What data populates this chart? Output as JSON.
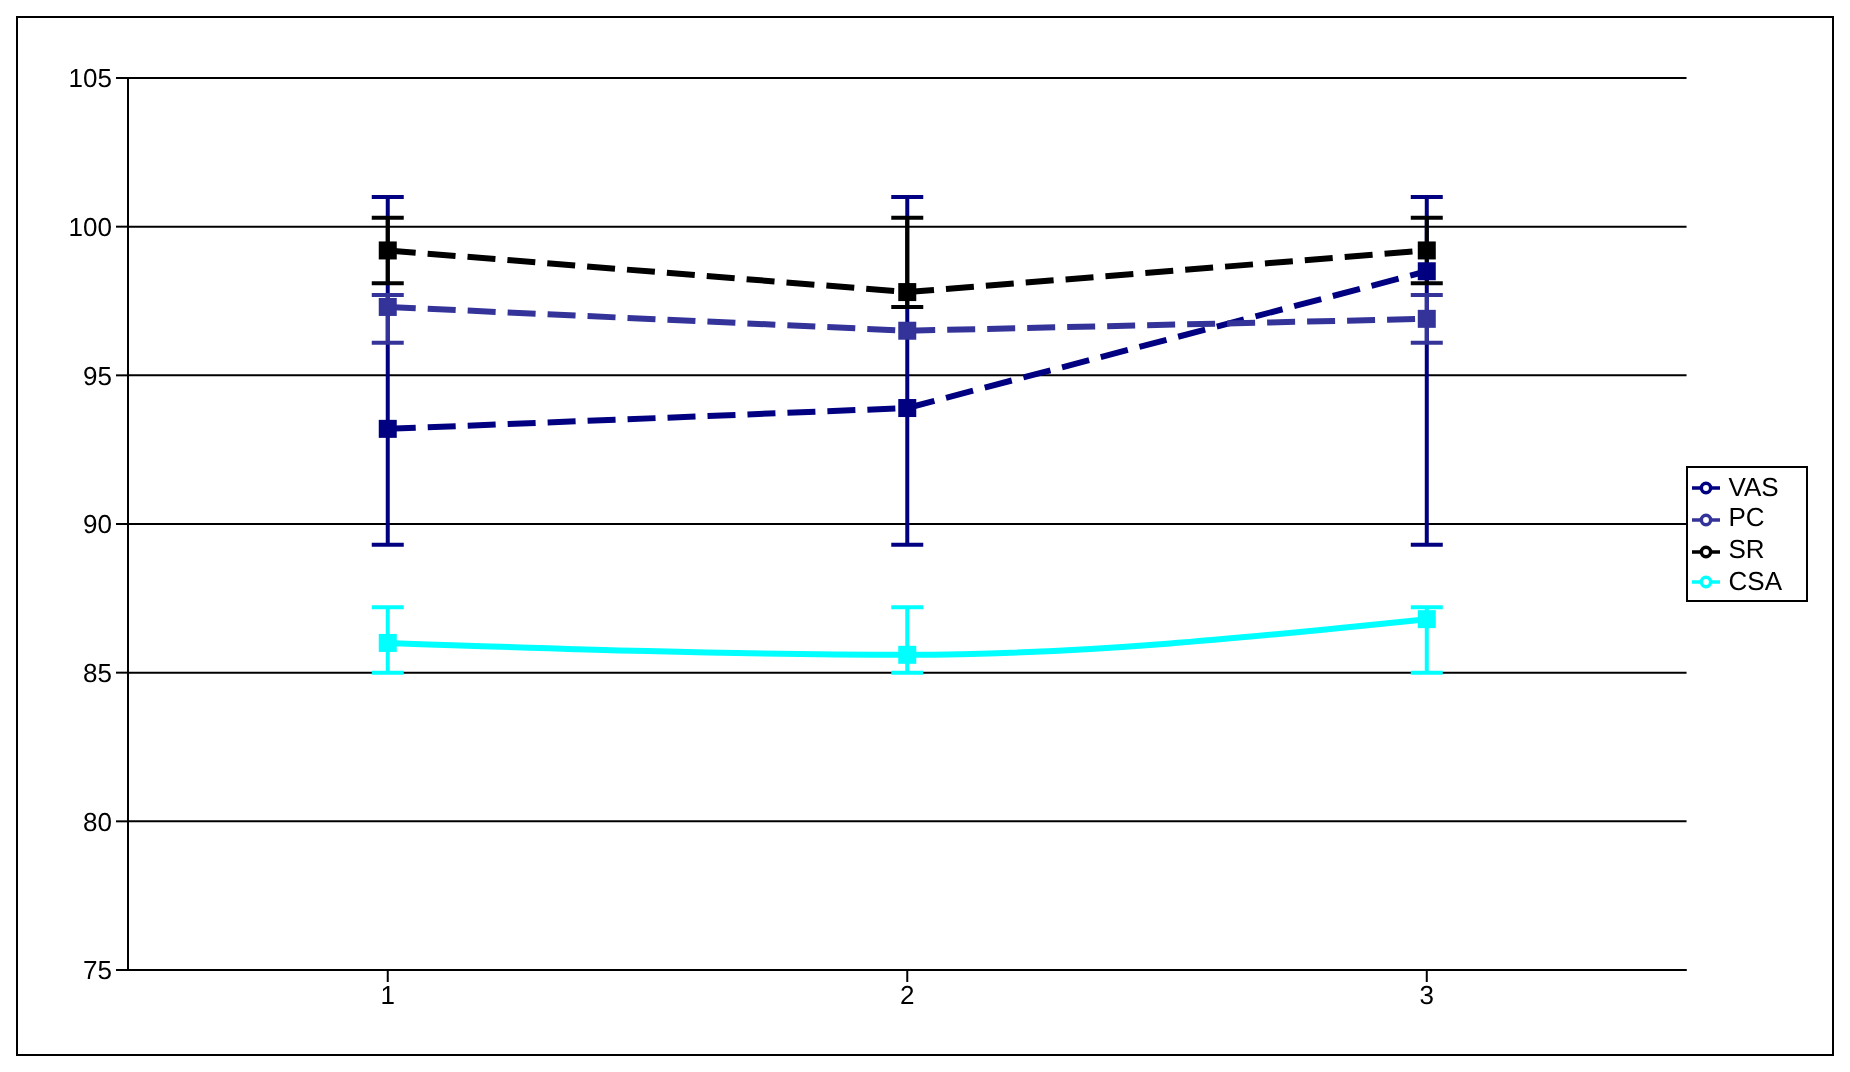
{
  "chart_data": {
    "type": "line",
    "categories": [
      "1",
      "2",
      "3"
    ],
    "series": [
      {
        "name": "VAS",
        "color": "#000080",
        "values": [
          93.2,
          93.9,
          98.5
        ],
        "errors": [
          [
            89.3,
            101
          ],
          [
            89.3,
            101
          ],
          [
            89.3,
            101
          ]
        ],
        "line_style": "dashed",
        "marker": "square"
      },
      {
        "name": "PC",
        "color": "#333399",
        "values": [
          97.3,
          96.5,
          96.9
        ],
        "errors": [
          [
            96.1,
            97.7
          ],
          null,
          [
            96.1,
            97.7
          ]
        ],
        "line_style": "dashed",
        "marker": "square"
      },
      {
        "name": "SR",
        "color": "#000000",
        "values": [
          99.2,
          97.8,
          99.2
        ],
        "errors": [
          [
            98.1,
            100.3
          ],
          [
            97.3,
            100.3
          ],
          [
            98.1,
            100.3
          ]
        ],
        "line_style": "dashed",
        "marker": "square"
      },
      {
        "name": "CSA",
        "color": "#00ffff",
        "values": [
          86.0,
          85.6,
          86.8
        ],
        "errors": [
          [
            85.0,
            87.2
          ],
          [
            85.0,
            87.2
          ],
          [
            85.0,
            87.2
          ]
        ],
        "line_style": "solid",
        "marker": "square"
      }
    ],
    "ylim": [
      75,
      105
    ],
    "yticks": [
      75,
      80,
      85,
      90,
      95,
      100,
      105
    ],
    "grid": "y",
    "legend": "right"
  }
}
